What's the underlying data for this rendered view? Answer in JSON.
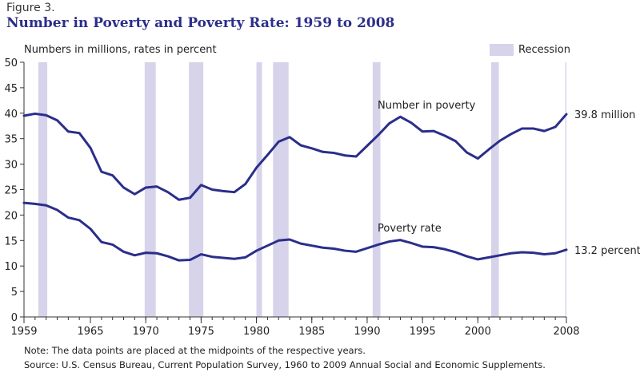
{
  "figure_label": "Figure 3.",
  "units_label": "Numbers in millions, rates in percent",
  "note": "Note:  The data points are placed at the midpoints of the respective years.",
  "source": "Source:  U.S. Census Bureau, Current Population Survey, 1960 to 2009 Annual Social and Economic Supplements.",
  "colors": {
    "line": "#2b2e8a",
    "recession": "#d6d3ea",
    "title": "#2b2e8a"
  },
  "chart_data": {
    "type": "line",
    "title": "Number in Poverty and Poverty Rate: 1959 to 2008",
    "xlabel": "",
    "ylabel": "",
    "xlim": [
      1959,
      2008
    ],
    "ylim": [
      0,
      50
    ],
    "x_ticks": [
      1959,
      1965,
      1970,
      1975,
      1980,
      1985,
      1990,
      1995,
      2000,
      2008
    ],
    "y_ticks": [
      0,
      5,
      10,
      15,
      20,
      25,
      30,
      35,
      40,
      45,
      50
    ],
    "grid": false,
    "legend": {
      "label": "Recession",
      "placement": "top-right"
    },
    "recessions": [
      [
        1960.3,
        1961.1
      ],
      [
        1969.9,
        1970.9
      ],
      [
        1973.9,
        1975.2
      ],
      [
        1980.0,
        1980.5
      ],
      [
        1981.5,
        1982.9
      ],
      [
        1990.5,
        1991.2
      ],
      [
        2001.2,
        2001.9
      ],
      [
        2007.9,
        2008.9
      ]
    ],
    "x": [
      1959,
      1960,
      1961,
      1962,
      1963,
      1964,
      1965,
      1966,
      1967,
      1968,
      1969,
      1970,
      1971,
      1972,
      1973,
      1974,
      1975,
      1976,
      1977,
      1978,
      1979,
      1980,
      1981,
      1982,
      1983,
      1984,
      1985,
      1986,
      1987,
      1988,
      1989,
      1990,
      1991,
      1992,
      1993,
      1994,
      1995,
      1996,
      1997,
      1998,
      1999,
      2000,
      2001,
      2002,
      2003,
      2004,
      2005,
      2006,
      2007,
      2008
    ],
    "series": [
      {
        "name": "Number in poverty",
        "end_label": "39.8 million",
        "values": [
          39.5,
          39.9,
          39.6,
          38.6,
          36.4,
          36.1,
          33.2,
          28.5,
          27.8,
          25.4,
          24.1,
          25.4,
          25.6,
          24.5,
          23.0,
          23.4,
          25.9,
          25.0,
          24.7,
          24.5,
          26.1,
          29.3,
          31.8,
          34.4,
          35.3,
          33.7,
          33.1,
          32.4,
          32.2,
          31.7,
          31.5,
          33.6,
          35.7,
          38.0,
          39.3,
          38.1,
          36.4,
          36.5,
          35.6,
          34.5,
          32.3,
          31.1,
          32.9,
          34.6,
          35.9,
          37.0,
          37.0,
          36.5,
          37.3,
          39.8
        ]
      },
      {
        "name": "Poverty rate",
        "end_label": "13.2 percent",
        "values": [
          22.4,
          22.2,
          21.9,
          21.0,
          19.5,
          19.0,
          17.3,
          14.7,
          14.2,
          12.8,
          12.1,
          12.6,
          12.5,
          11.9,
          11.1,
          11.2,
          12.3,
          11.8,
          11.6,
          11.4,
          11.7,
          13.0,
          14.0,
          15.0,
          15.2,
          14.4,
          14.0,
          13.6,
          13.4,
          13.0,
          12.8,
          13.5,
          14.2,
          14.8,
          15.1,
          14.5,
          13.8,
          13.7,
          13.3,
          12.7,
          11.9,
          11.3,
          11.7,
          12.1,
          12.5,
          12.7,
          12.6,
          12.3,
          12.5,
          13.2
        ]
      }
    ]
  }
}
